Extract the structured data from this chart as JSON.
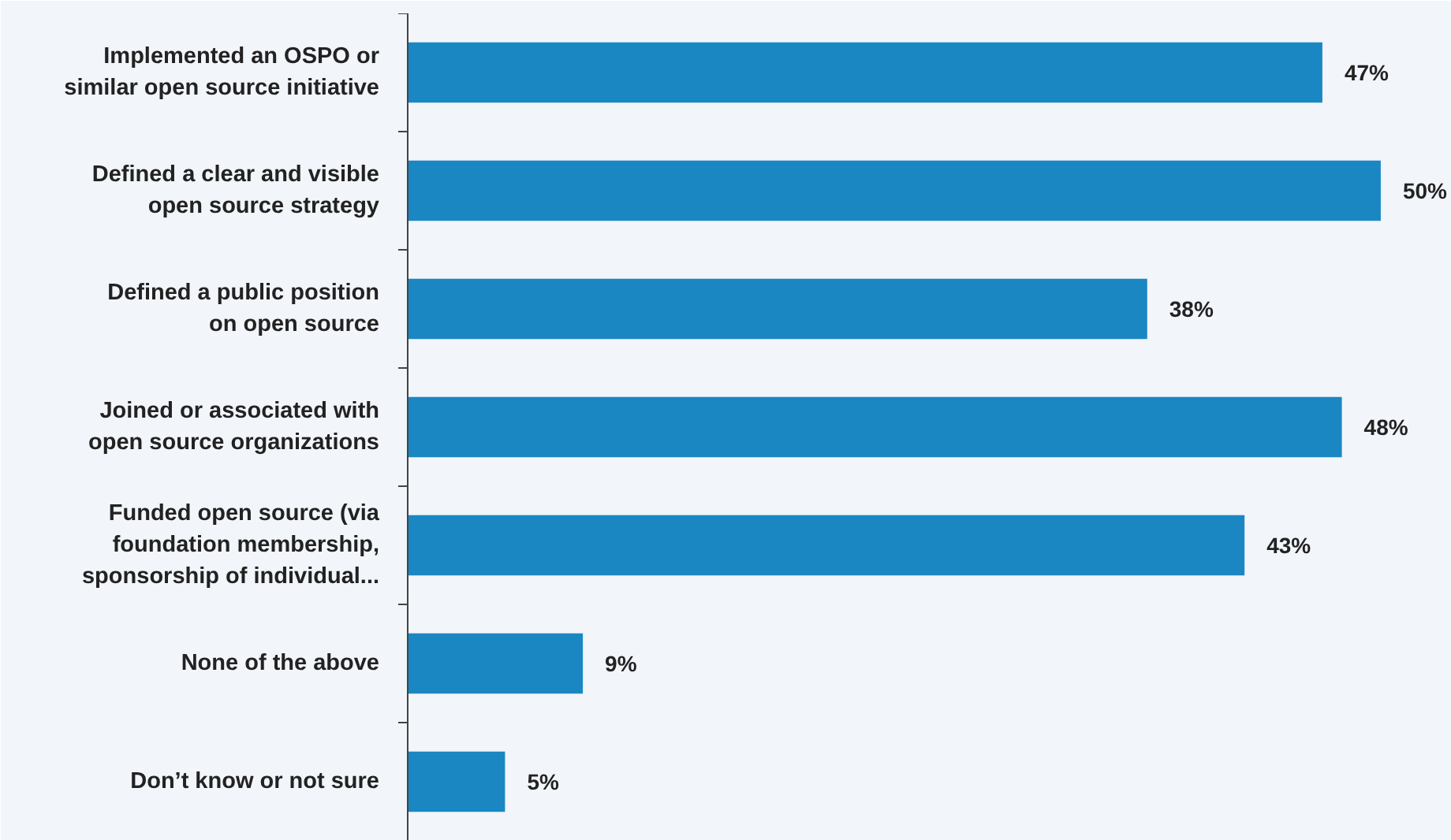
{
  "chart_data": {
    "type": "bar",
    "orientation": "horizontal",
    "categories": [
      "Implemented an OSPO or\nsimilar open source initiative",
      "Defined a clear and visible\nopen source strategy",
      "Defined a public position\non open source",
      "Joined or associated with\nopen source organizations",
      "Funded open source (via\nfoundation membership,\nsponsorship of individual...",
      "None of the above",
      "Don’t know or not sure"
    ],
    "values": [
      47,
      50,
      38,
      48,
      43,
      9,
      5
    ],
    "value_labels": [
      "47%",
      "50%",
      "38%",
      "48%",
      "43%",
      "9%",
      "5%"
    ],
    "color": "#1a87c3",
    "grid": false
  }
}
